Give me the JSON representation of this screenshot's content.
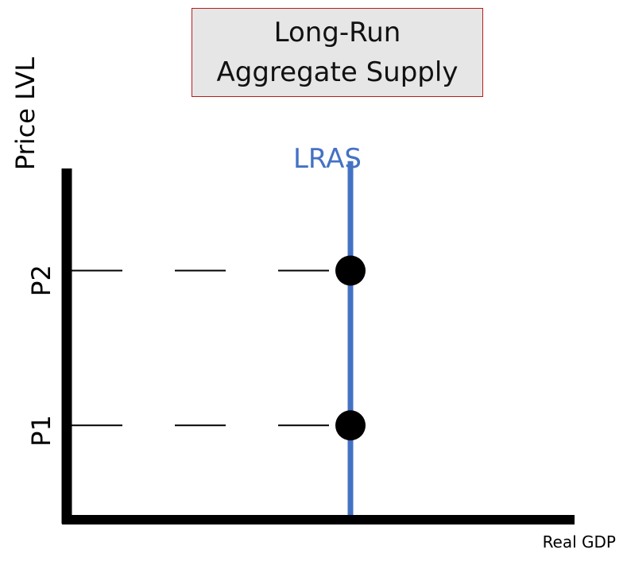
{
  "chart_data": {
    "type": "line",
    "title_lines": [
      "Long-Run",
      "Aggregate Supply"
    ],
    "xlabel": "Real GDP",
    "ylabel": "Price LVL",
    "xlim": [
      0,
      10
    ],
    "ylim": [
      0,
      10
    ],
    "grid": false,
    "series": [
      {
        "name": "LRAS",
        "color": "#4472c4",
        "x": [
          5.1,
          5.1
        ],
        "y": [
          0,
          9.5
        ]
      }
    ],
    "points": [
      {
        "label": "P2",
        "x": 5.1,
        "y": 6.6
      },
      {
        "label": "P1",
        "x": 5.1,
        "y": 2.5
      }
    ],
    "axis_color": "#000000",
    "point_color": "#000000"
  }
}
